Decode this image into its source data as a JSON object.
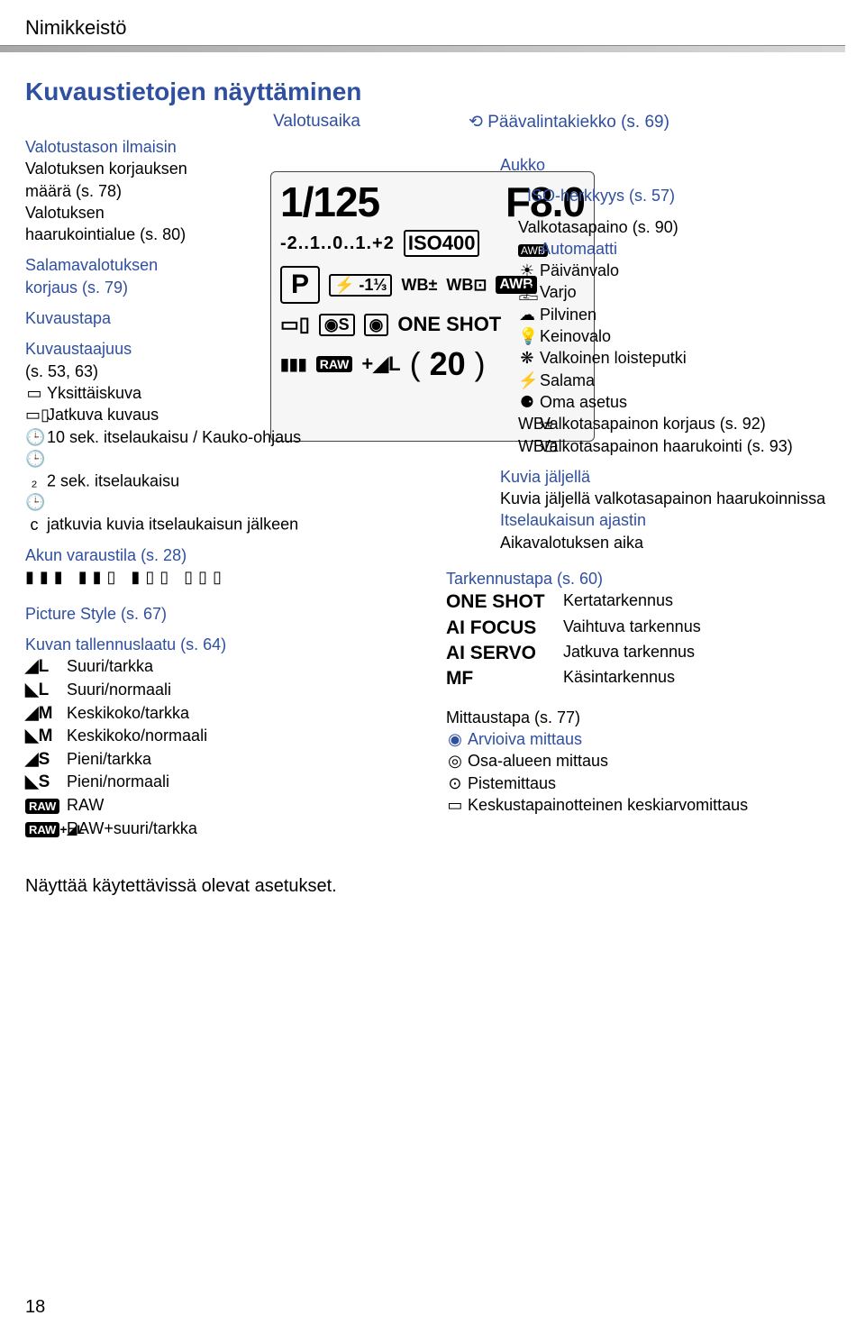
{
  "header": {
    "title": "Nimikkeistö"
  },
  "main_title": "Kuvaustietojen näyttäminen",
  "top_labels": {
    "left": "Valotusaika",
    "right": "Päävalintakiekko (s. 69)"
  },
  "left": {
    "exposure_indicator": {
      "l1": "Valotustason ilmaisin",
      "l2": "Valotuksen korjauksen",
      "l3": "määrä (s. 78)",
      "l4": "Valotuksen",
      "l5": "haarukointialue (s. 80)"
    },
    "flash_comp": {
      "l1": "Salamavalotuksen",
      "l2": "korjaus (s. 79)"
    },
    "shoot_mode": "Kuvaustapa",
    "drive": {
      "title": "Kuvaustaajuus",
      "pages": "(s. 53, 63)",
      "items": [
        {
          "icon": "▭",
          "text": "Yksittäiskuva"
        },
        {
          "icon": "▭▯",
          "text": "Jatkuva kuvaus"
        },
        {
          "icon": "🕒",
          "text": "10 sek. itselaukaisu / Kauko-ohjaus",
          "wrap": true
        },
        {
          "icon": "🕒₂",
          "text": "2 sek. itselaukaisu"
        },
        {
          "icon": "🕒c",
          "text": "jatkuvia kuvia itselaukaisun jälkeen",
          "wrap": true
        }
      ]
    },
    "battery": "Akun varaustila (s. 28)",
    "battery_icons": "▮▮▮ ▮▮▯ ▮▯▯ ▯▯▯",
    "pstyle": "Picture Style (s. 67)",
    "quality": {
      "title": "Kuvan tallennuslaatu (s. 64)",
      "rows": [
        {
          "sym": "◢L",
          "text": "Suuri/tarkka"
        },
        {
          "sym": "◣L",
          "text": "Suuri/normaali"
        },
        {
          "sym": "◢M",
          "text": "Keskikoko/tarkka"
        },
        {
          "sym": "◣M",
          "text": "Keskikoko/normaali"
        },
        {
          "sym": "◢S",
          "text": "Pieni/tarkka"
        },
        {
          "sym": "◣S",
          "text": "Pieni/normaali"
        },
        {
          "sym": "RAW",
          "text": "RAW",
          "raw": true
        },
        {
          "sym": "RAW+◢L",
          "text": "RAW+suuri/tarkka",
          "raw": true
        }
      ]
    }
  },
  "right": {
    "aperture": "Aukko",
    "iso": "ISO-herkkyys (s. 57)",
    "wb": {
      "title": "Valkotasapaino (s. 90)",
      "items": [
        {
          "icon": "AWB",
          "text": "Automaatti",
          "blue": true,
          "awb": true
        },
        {
          "icon": "☀",
          "text": "Päivänvalo"
        },
        {
          "icon": "⛱",
          "text": "Varjo"
        },
        {
          "icon": "☁",
          "text": "Pilvinen"
        },
        {
          "icon": "💡",
          "text": "Keinovalo"
        },
        {
          "icon": "❋",
          "text": "Valkoinen loisteputki",
          "wrap": true
        },
        {
          "icon": "⚡",
          "text": "Salama"
        },
        {
          "icon": "⚈",
          "text": "Oma asetus"
        },
        {
          "icon": "WB±",
          "text": "Valkotasapainon korjaus (s. 92)",
          "wrap": true
        },
        {
          "icon": "WB⊡",
          "text": "Valkotasapainon haarukointi (s. 93)",
          "wrap": true
        }
      ]
    },
    "shots": {
      "l1": "Kuvia jäljellä",
      "l2": "Kuvia jäljellä valkotasapainon haarukoinnissa",
      "l3": "Itselaukaisun ajastin",
      "l4": "Aikavalotuksen aika"
    },
    "af": {
      "title": "Tarkennustapa (s. 60)",
      "rows": [
        {
          "mode": "ONE SHOT",
          "text": "Kertatarkennus"
        },
        {
          "mode": "AI FOCUS",
          "text": "Vaihtuva tarkennus"
        },
        {
          "mode": "AI SERVO",
          "text": "Jatkuva tarkennus"
        },
        {
          "mode": "MF",
          "text": "Käsintarkennus"
        }
      ]
    },
    "metering": {
      "title": "Mittaustapa (s. 77)",
      "rows": [
        {
          "icon": "◉",
          "text": "Arvioiva mittaus",
          "blue": true
        },
        {
          "icon": "◎",
          "text": "Osa-alueen mittaus"
        },
        {
          "icon": "⊙",
          "text": "Pistemittaus"
        },
        {
          "icon": "▭",
          "text": "Keskustapainotteinen keskiarvomittaus"
        }
      ]
    }
  },
  "lcd": {
    "shutter": "1/125",
    "fstop": "F8.0",
    "ev": "-2..1..0..1.+2",
    "iso": "ISO400",
    "mode": "P",
    "flash": "⚡ -1⅓",
    "wb1": "WB±",
    "wb2": "WB⊡",
    "awb": "AWB",
    "drive": "▭▯",
    "pstyle": "◉S",
    "meter": "◉",
    "oneshot": "ONE SHOT",
    "raw": "RAW",
    "plus": "+◢L",
    "shots_open": "(",
    "shots": "20",
    "shots_close": ")"
  },
  "footer": "Näyttää käytettävissä olevat asetukset.",
  "page": "18"
}
